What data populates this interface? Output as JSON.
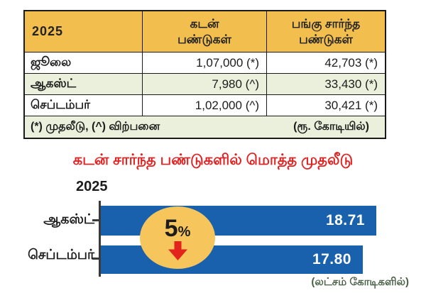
{
  "table": {
    "year_header": "2025",
    "col_debt": {
      "line1": "கடன்",
      "line2": "பண்டுகள்"
    },
    "col_equity": {
      "line1": "பங்கு சார்ந்த",
      "line2": "பண்டுகள்"
    },
    "rows": [
      {
        "month": "ஜூலை",
        "debt": "1,07,000 (*)",
        "equity": "42,703 (*)"
      },
      {
        "month": "ஆகஸ்ட்",
        "debt": "7,980 (^)",
        "equity": "33,430 (*)"
      },
      {
        "month": "செப்டம்பர்",
        "debt": "1,02,000 (^)",
        "equity": "30,421 (*)"
      }
    ],
    "footnote_left": "(*) முதலீடு, (^) விற்பனை",
    "footnote_right": "(ரூ. கோடியில்)"
  },
  "chart": {
    "title": "கடன் சார்ந்த பண்டுகளில் மொத்த முதலீடு",
    "year_label": "2025",
    "change_number": "5",
    "change_symbol": "%",
    "change_direction": "down",
    "unit_caption": "(லட்சம் கோடிகளில்)"
  },
  "chart_data": {
    "type": "bar",
    "orientation": "horizontal",
    "title": "கடன் சார்ந்த பண்டுகளில் மொத்த முதலீடு",
    "categories": [
      "ஆகஸ்ட்",
      "செப்டம்பர்"
    ],
    "values": [
      18.71,
      17.8
    ],
    "value_labels": [
      "18.71",
      "17.80"
    ],
    "annotation": "5% ↓",
    "unit": "லட்சம் கோடிகளில்",
    "xlim": [
      0,
      18.71
    ],
    "grid": false,
    "legend": false
  },
  "colors": {
    "header_yellow": "#f2bf4e",
    "row_stripe_green": "#eaf0dc",
    "bar_blue": "#1a61ad",
    "title_red": "#e02222",
    "arrow_red": "#e3241c",
    "badge_yellow": "#f6c55c",
    "caption_green": "#4a6147",
    "border_dark": "#1a1a1a"
  }
}
